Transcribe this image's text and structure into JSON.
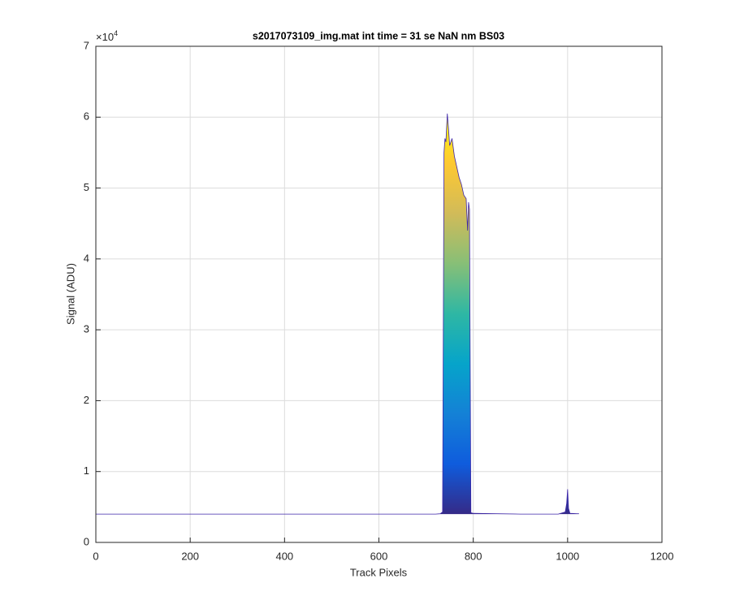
{
  "chart_data": {
    "type": "area-line",
    "title": "s2017073109_img.mat int time = 31 se  NaN nm BS03",
    "x_label": "Track Pixels",
    "y_label": "Signal (ADU)",
    "y_exponent": {
      "base": "×10",
      "power": "4"
    },
    "xlim": [
      0,
      1200
    ],
    "xticks": [
      0,
      200,
      400,
      600,
      800,
      1000,
      1200
    ],
    "ylim": [
      0,
      70000
    ],
    "yticks": [
      0,
      {
        "value": 10000,
        "label": "1"
      },
      {
        "value": 20000,
        "label": "2"
      },
      {
        "value": 30000,
        "label": "3"
      },
      {
        "value": 40000,
        "label": "4"
      },
      {
        "value": 50000,
        "label": "5"
      },
      {
        "value": 60000,
        "label": "6"
      },
      {
        "value": 70000,
        "label": "7"
      }
    ],
    "grid": true,
    "line_color": "#3e26a8",
    "colormap": [
      "#352a87",
      "#0f5cdd",
      "#1481d6",
      "#06a4ca",
      "#2eb7a4",
      "#87bf77",
      "#d1bb59",
      "#fec832",
      "#f9fb0e"
    ],
    "x": [
      0,
      50,
      100,
      150,
      200,
      250,
      300,
      350,
      400,
      450,
      500,
      550,
      600,
      650,
      700,
      720,
      730,
      735,
      738,
      740,
      742,
      745,
      748,
      750,
      755,
      760,
      765,
      770,
      775,
      780,
      785,
      788,
      790,
      792,
      795,
      800,
      850,
      900,
      950,
      980,
      995,
      998,
      1000,
      1002,
      1005,
      1020,
      1024
    ],
    "values": [
      4000,
      4000,
      4000,
      4000,
      4000,
      4000,
      4000,
      4000,
      4000,
      4000,
      4000,
      4000,
      4000,
      4000,
      4000,
      4000,
      4050,
      4300,
      55000,
      57000,
      56500,
      60500,
      58000,
      56000,
      57000,
      54500,
      53000,
      51500,
      50500,
      49000,
      48500,
      44000,
      48000,
      47000,
      4200,
      4100,
      4050,
      4000,
      4000,
      4000,
      4300,
      5500,
      7500,
      4800,
      4100,
      4050,
      4050
    ]
  }
}
